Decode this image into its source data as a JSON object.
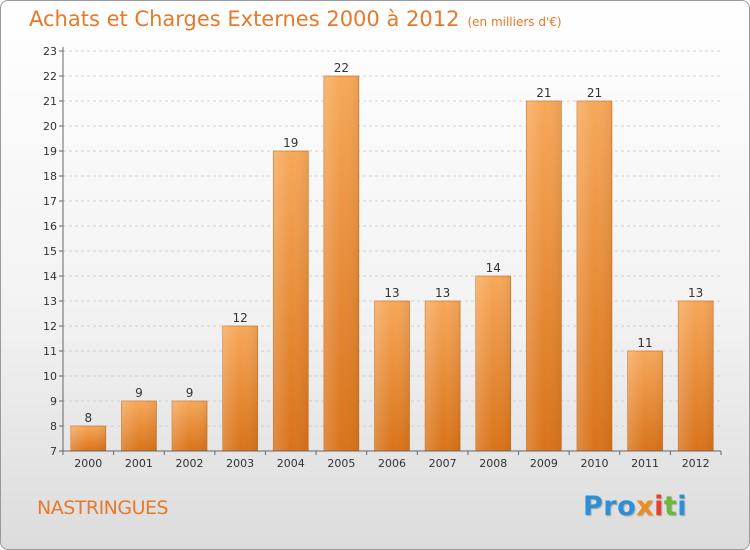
{
  "header": {
    "title": "Achats et Charges Externes 2000 à 2012",
    "unit": "(en milliers d'€)"
  },
  "footer": {
    "city": "NASTRINGUES",
    "logo": [
      "Pro",
      "x",
      "i",
      "t",
      "i"
    ]
  },
  "colors": {
    "bar_top": "#f7a85a",
    "bar_bottom": "#d9731a",
    "title": "#e8782a"
  },
  "chart_data": {
    "type": "bar",
    "categories": [
      "2000",
      "2001",
      "2002",
      "2003",
      "2004",
      "2005",
      "2006",
      "2007",
      "2008",
      "2009",
      "2010",
      "2011",
      "2012"
    ],
    "values": [
      8,
      9,
      9,
      12,
      19,
      22,
      13,
      13,
      14,
      21,
      21,
      11,
      13
    ],
    "title": "Achats et Charges Externes 2000 à 2012",
    "subtitle": "(en milliers d'€)",
    "xlabel": "",
    "ylabel": "",
    "ylim": [
      7,
      23
    ],
    "yticks": [
      7,
      8,
      9,
      10,
      11,
      12,
      13,
      14,
      15,
      16,
      17,
      18,
      19,
      20,
      21,
      22,
      23
    ],
    "grid": true,
    "data_labels": true
  }
}
